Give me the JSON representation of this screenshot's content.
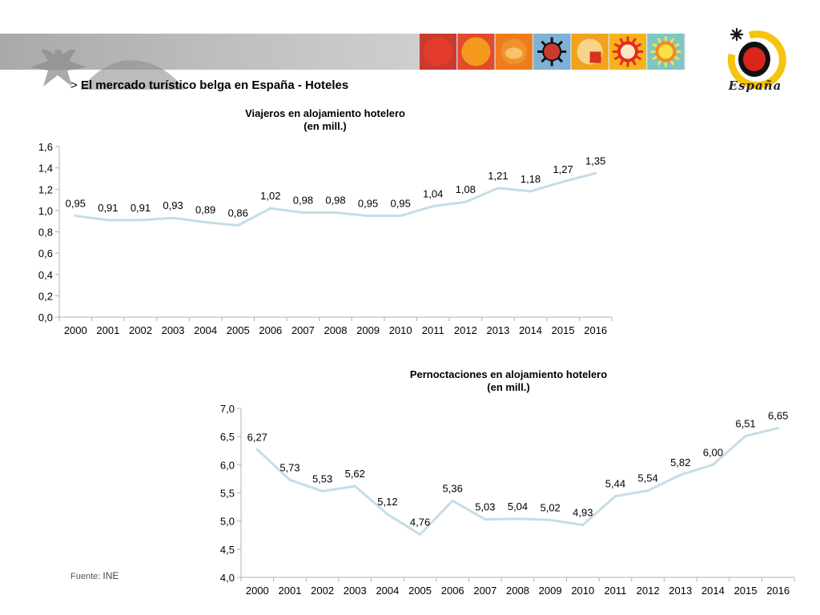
{
  "header": {
    "prefix": ">",
    "title": "El mercado turístico belga en España - Hoteles",
    "logo_text": "España"
  },
  "colors": {
    "line": "#c5dde6",
    "axis": "#b0b0b0",
    "banner": "#b5b5b5"
  },
  "tiles": [
    {
      "icon": "red-circle-tile-icon",
      "bg": "#c93a2f",
      "fg": "#e33b2b"
    },
    {
      "icon": "orange-sun-tile-icon",
      "bg": "#e34b2a",
      "fg": "#f39a1f"
    },
    {
      "icon": "shell-sun-tile-icon",
      "bg": "#ef7c1c",
      "fg": "#f6c36a"
    },
    {
      "icon": "black-sun-tile-icon",
      "bg": "#7fb1d6",
      "fg": "#c93a2f"
    },
    {
      "icon": "quartered-sun-tile-icon",
      "bg": "#f3a21d",
      "fg": "#d6331f"
    },
    {
      "icon": "red-sun-tile-icon",
      "bg": "#f5b21b",
      "fg": "#e52b23"
    },
    {
      "icon": "rainbow-sun-tile-icon",
      "bg": "#7dc6c5",
      "fg": "#f8e04a"
    }
  ],
  "chart_data": [
    {
      "type": "line",
      "title": "Viajeros en alojamiento hotelero",
      "subtitle": "(en mill.)",
      "x": [
        "2000",
        "2001",
        "2002",
        "2003",
        "2004",
        "2005",
        "2006",
        "2007",
        "2008",
        "2009",
        "2010",
        "2011",
        "2012",
        "2013",
        "2014",
        "2015",
        "2016"
      ],
      "values": [
        0.95,
        0.91,
        0.91,
        0.93,
        0.89,
        0.86,
        1.02,
        0.98,
        0.98,
        0.95,
        0.95,
        1.04,
        1.08,
        1.21,
        1.18,
        1.27,
        1.35
      ],
      "labels": [
        "0,95",
        "0,91",
        "0,91",
        "0,93",
        "0,89",
        "0,86",
        "1,02",
        "0,98",
        "0,98",
        "0,95",
        "0,95",
        "1,04",
        "1,08",
        "1,21",
        "1,18",
        "1,27",
        "1,35"
      ],
      "ylim": [
        0,
        1.6
      ],
      "yticks": [
        "0,0",
        "0,2",
        "0,4",
        "0,6",
        "0,8",
        "1,0",
        "1,2",
        "1,4",
        "1,6"
      ],
      "grid": false,
      "legend": "none"
    },
    {
      "type": "line",
      "title": "Pernoctaciones en alojamiento hotelero",
      "subtitle": "(en mill.)",
      "x": [
        "2000",
        "2001",
        "2002",
        "2003",
        "2004",
        "2005",
        "2006",
        "2007",
        "2008",
        "2009",
        "2010",
        "2011",
        "2012",
        "2013",
        "2014",
        "2015",
        "2016"
      ],
      "values": [
        6.27,
        5.73,
        5.53,
        5.62,
        5.12,
        4.76,
        5.36,
        5.03,
        5.04,
        5.02,
        4.93,
        5.44,
        5.54,
        5.82,
        6.0,
        6.51,
        6.65
      ],
      "labels": [
        "6,27",
        "5,73",
        "5,53",
        "5,62",
        "5,12",
        "4,76",
        "5,36",
        "5,03",
        "5,04",
        "5,02",
        "4,93",
        "5,44",
        "5,54",
        "5,82",
        "6,00",
        "6,51",
        "6,65"
      ],
      "ylim": [
        4.0,
        7.0
      ],
      "yticks": [
        "4,0",
        "4,5",
        "5,0",
        "5,5",
        "6,0",
        "6,5",
        "7,0"
      ],
      "grid": false,
      "legend": "none"
    }
  ],
  "footer": {
    "source_label": "Fuente:",
    "source_value": "INE"
  }
}
